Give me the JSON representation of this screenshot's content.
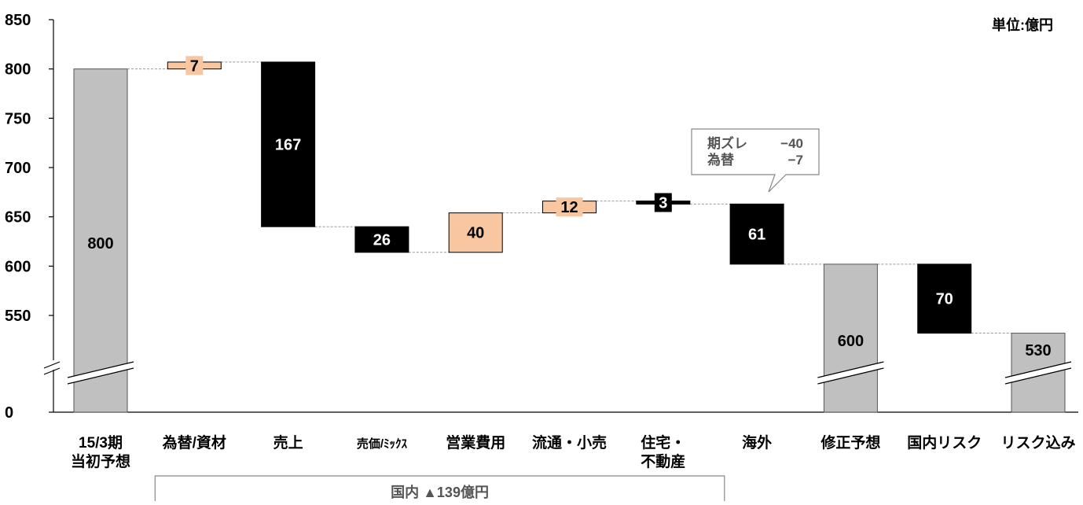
{
  "chart_data": {
    "type": "bar",
    "subtype": "waterfall",
    "unit_label": "単位:億円",
    "y_ticks": [
      "850",
      "800",
      "750",
      "700",
      "650",
      "600",
      "550",
      "0"
    ],
    "y_axis_break": true,
    "ylim": [
      500,
      850
    ],
    "categories": [
      [
        "15/3期",
        "当初予想"
      ],
      [
        "為替/資材"
      ],
      [
        "売上"
      ],
      [
        "売価/ﾐｯｸｽ"
      ],
      [
        "営業費用"
      ],
      [
        "流通・小売"
      ],
      [
        "住宅・",
        "不動産"
      ],
      [
        "海外"
      ],
      [
        "修正予想"
      ],
      [
        "国内リスク"
      ],
      [
        "リスク込み"
      ]
    ],
    "bars": [
      {
        "kind": "total",
        "start": 0,
        "end": 800,
        "label": "800",
        "color": "#c0c0c0"
      },
      {
        "kind": "increase",
        "start": 800,
        "end": 807,
        "label": "7",
        "color": "#f8c6a0"
      },
      {
        "kind": "decrease",
        "start": 807,
        "end": 640,
        "label": "167",
        "color": "#000000"
      },
      {
        "kind": "decrease",
        "start": 640,
        "end": 614,
        "label": "26",
        "color": "#000000"
      },
      {
        "kind": "increase",
        "start": 614,
        "end": 654,
        "label": "40",
        "color": "#f8c6a0"
      },
      {
        "kind": "increase",
        "start": 654,
        "end": 666,
        "label": "12",
        "color": "#f8c6a0"
      },
      {
        "kind": "decrease",
        "start": 666,
        "end": 663,
        "label": "3",
        "color": "#000000"
      },
      {
        "kind": "decrease",
        "start": 663,
        "end": 602,
        "label": "61",
        "color": "#000000"
      },
      {
        "kind": "total",
        "start": 0,
        "end": 602,
        "label": "600",
        "color": "#c0c0c0"
      },
      {
        "kind": "decrease",
        "start": 602,
        "end": 532,
        "label": "70",
        "color": "#000000"
      },
      {
        "kind": "total",
        "start": 0,
        "end": 532,
        "label": "530",
        "color": "#c0c0c0"
      }
    ],
    "callout": {
      "rows": [
        [
          "期ズレ",
          "−40"
        ],
        [
          "為替",
          "−7"
        ]
      ]
    },
    "group_bracket": {
      "label": "国内 ▲139億円",
      "from_category": 1,
      "to_category": 6
    }
  }
}
